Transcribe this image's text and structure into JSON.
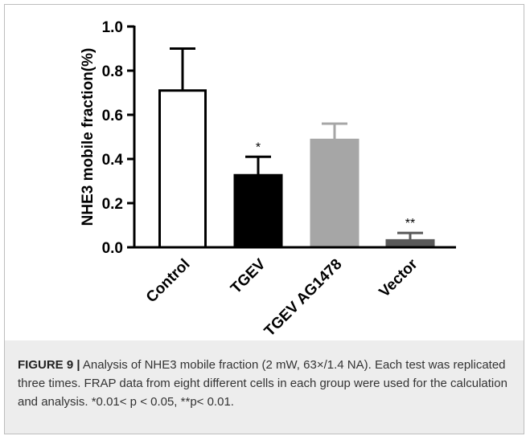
{
  "chart_data": {
    "type": "bar",
    "categories": [
      "Control",
      "TGEV",
      "TGEV AG1478",
      "Vector"
    ],
    "values": [
      0.71,
      0.33,
      0.49,
      0.035
    ],
    "errors": [
      0.19,
      0.08,
      0.07,
      0.03
    ],
    "significance": [
      "",
      "*",
      "",
      "**"
    ],
    "bar_fill": [
      "#ffffff",
      "#000000",
      "#a6a6a6",
      "#595959"
    ],
    "ylabel": "NHE3 mobile fraction(%)",
    "ylim": [
      0,
      1.0
    ],
    "yticks": [
      "0.0",
      "0.2",
      "0.4",
      "0.6",
      "0.8",
      "1.0"
    ],
    "grid": false
  },
  "caption": {
    "label": "FIGURE 9 |",
    "text": " Analysis of NHE3 mobile fraction (2 mW, 63×/1.4 NA). Each test was replicated three times. FRAP data from eight different cells in each group were used for the calculation and analysis. *0.01< p < 0.05, **p< 0.01."
  }
}
